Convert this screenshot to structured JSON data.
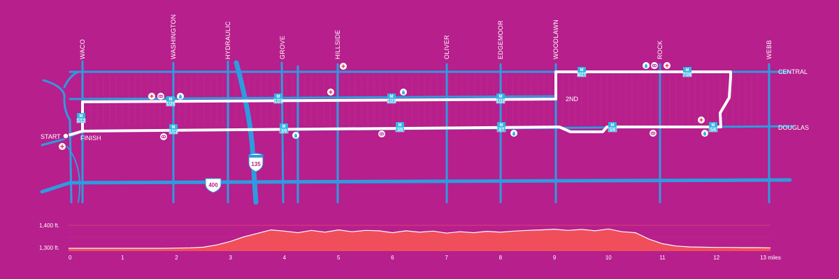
{
  "streets_vertical": [
    "WACO",
    "WASHINGTON",
    "HYDRAULIC",
    "GROVE",
    "HILLSIDE",
    "OLIVER",
    "EDGEMOOR",
    "WOODLAWN",
    "ROCK",
    "WEBB"
  ],
  "streets_horizontal": [
    "CENTRAL",
    "2ND",
    "DOUGLAS"
  ],
  "route_labels": {
    "start": "START",
    "finish": "FINISH"
  },
  "highway_shields": {
    "interstate": "135",
    "us": "400"
  },
  "mile_markers": [
    "1/12",
    "1/13",
    "1/25",
    "1/24",
    "1/23",
    "1/22",
    "8/27",
    "7/28",
    "3/9",
    "3/8",
    "4/7",
    "5/6"
  ],
  "elevation": {
    "y_ticks": [
      "1,400 ft.",
      "1,300 ft."
    ],
    "x_ticks": [
      "0",
      "1",
      "2",
      "3",
      "4",
      "5",
      "6",
      "7",
      "8",
      "9",
      "10",
      "11",
      "12",
      "13 miles"
    ],
    "profile_ft": [
      1300,
      1300,
      1300,
      1300,
      1300,
      1300,
      1300,
      1300,
      1301,
      1302,
      1305,
      1315,
      1330,
      1350,
      1365,
      1380,
      1375,
      1368,
      1378,
      1370,
      1380,
      1372,
      1378,
      1376,
      1368,
      1376,
      1370,
      1375,
      1366,
      1372,
      1368,
      1374,
      1370,
      1375,
      1378,
      1380,
      1383,
      1378,
      1382,
      1376,
      1384,
      1372,
      1368,
      1340,
      1320,
      1310,
      1306,
      1305,
      1304,
      1304,
      1303,
      1303,
      1302
    ],
    "colors": {
      "fill": "#F14E5B",
      "line": "#FFFFFF",
      "grid": "#E84A6E"
    }
  },
  "colors": {
    "background": "#B61F8C",
    "road": "#2E9BE0",
    "route": "#FFFFFF",
    "aid": "#F14E5B",
    "badge": "#2EB6E5"
  }
}
